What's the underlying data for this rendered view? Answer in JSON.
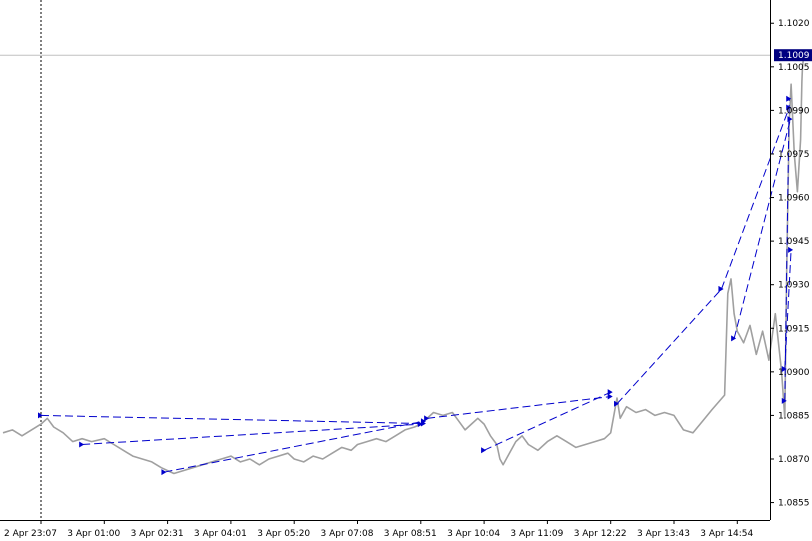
{
  "chart_data": {
    "type": "line",
    "title": "",
    "xlabel": "",
    "ylabel": "",
    "ylim": [
      1.0849,
      1.1028
    ],
    "grid": false,
    "legend": "none",
    "colors": {
      "price_line": "#a0a0a0",
      "trade_lines": "#0000cc",
      "axis": "#000000",
      "current_price_label_bg": "#000080",
      "current_price_label_text": "#ffffff",
      "current_price_line": "#c0c0c0"
    },
    "current_price": {
      "value": 1.1009,
      "label": "1.1009"
    },
    "y_ticks": [
      {
        "value": 1.102,
        "label": "1.1020"
      },
      {
        "value": 1.1005,
        "label": "1.1005"
      },
      {
        "value": 1.099,
        "label": "1.0990"
      },
      {
        "value": 1.0975,
        "label": "1.0975"
      },
      {
        "value": 1.096,
        "label": "1.0960"
      },
      {
        "value": 1.0945,
        "label": "1.0945"
      },
      {
        "value": 1.093,
        "label": "1.0930"
      },
      {
        "value": 1.0915,
        "label": "1.0915"
      },
      {
        "value": 1.09,
        "label": "1.0900"
      },
      {
        "value": 1.0885,
        "label": "1.0885"
      },
      {
        "value": 1.087,
        "label": "1.0870"
      },
      {
        "value": 1.0855,
        "label": "1.0855"
      }
    ],
    "x_ticks": [
      "2 Apr 23:07",
      "3 Apr 01:00",
      "3 Apr 02:31",
      "3 Apr 04:01",
      "3 Apr 05:20",
      "3 Apr 07:08",
      "3 Apr 08:51",
      "3 Apr 10:04",
      "3 Apr 11:09",
      "3 Apr 12:22",
      "3 Apr 13:43",
      "3 Apr 14:54"
    ],
    "x_range": [
      -0.6,
      12.05
    ],
    "period_separator_at": 0,
    "series": [
      {
        "values": [
          [
            -0.6,
            1.0879
          ],
          [
            -0.45,
            1.088
          ],
          [
            -0.3,
            1.0878
          ],
          [
            -0.15,
            1.088
          ],
          [
            0.0,
            1.0882
          ],
          [
            0.1,
            1.0884
          ],
          [
            0.2,
            1.0881
          ],
          [
            0.35,
            1.0879
          ],
          [
            0.5,
            1.0876
          ],
          [
            0.65,
            1.0877
          ],
          [
            0.8,
            1.0876
          ],
          [
            1.0,
            1.0877
          ],
          [
            1.15,
            1.0875
          ],
          [
            1.3,
            1.0873
          ],
          [
            1.45,
            1.0871
          ],
          [
            1.6,
            1.087
          ],
          [
            1.75,
            1.0869
          ],
          [
            1.9,
            1.0867
          ],
          [
            2.0,
            1.0866
          ],
          [
            2.1,
            1.0865
          ],
          [
            2.25,
            1.0866
          ],
          [
            2.4,
            1.0867
          ],
          [
            2.55,
            1.0868
          ],
          [
            2.7,
            1.0869
          ],
          [
            2.85,
            1.087
          ],
          [
            3.0,
            1.0871
          ],
          [
            3.15,
            1.0869
          ],
          [
            3.3,
            1.087
          ],
          [
            3.45,
            1.0868
          ],
          [
            3.6,
            1.087
          ],
          [
            3.75,
            1.0871
          ],
          [
            3.9,
            1.0872
          ],
          [
            4.0,
            1.087
          ],
          [
            4.15,
            1.0869
          ],
          [
            4.3,
            1.0871
          ],
          [
            4.45,
            1.087
          ],
          [
            4.6,
            1.0872
          ],
          [
            4.75,
            1.0874
          ],
          [
            4.9,
            1.0873
          ],
          [
            5.0,
            1.0875
          ],
          [
            5.15,
            1.0876
          ],
          [
            5.3,
            1.0877
          ],
          [
            5.45,
            1.0876
          ],
          [
            5.6,
            1.0878
          ],
          [
            5.75,
            1.088
          ],
          [
            5.9,
            1.0881
          ],
          [
            6.0,
            1.0882
          ],
          [
            6.1,
            1.0884
          ],
          [
            6.2,
            1.0886
          ],
          [
            6.35,
            1.0885
          ],
          [
            6.5,
            1.0886
          ],
          [
            6.6,
            1.0883
          ],
          [
            6.7,
            1.088
          ],
          [
            6.8,
            1.0882
          ],
          [
            6.9,
            1.0884
          ],
          [
            7.0,
            1.0882
          ],
          [
            7.1,
            1.0878
          ],
          [
            7.2,
            1.0875
          ],
          [
            7.25,
            1.087
          ],
          [
            7.3,
            1.0868
          ],
          [
            7.4,
            1.0872
          ],
          [
            7.5,
            1.0876
          ],
          [
            7.6,
            1.0878
          ],
          [
            7.7,
            1.0875
          ],
          [
            7.85,
            1.0873
          ],
          [
            8.0,
            1.0876
          ],
          [
            8.15,
            1.0878
          ],
          [
            8.3,
            1.0876
          ],
          [
            8.45,
            1.0874
          ],
          [
            8.6,
            1.0875
          ],
          [
            8.75,
            1.0876
          ],
          [
            8.9,
            1.0877
          ],
          [
            9.0,
            1.0879
          ],
          [
            9.1,
            1.0891
          ],
          [
            9.15,
            1.0884
          ],
          [
            9.25,
            1.0888
          ],
          [
            9.4,
            1.0886
          ],
          [
            9.55,
            1.0887
          ],
          [
            9.7,
            1.0885
          ],
          [
            9.85,
            1.0886
          ],
          [
            10.0,
            1.0885
          ],
          [
            10.15,
            1.088
          ],
          [
            10.3,
            1.0879
          ],
          [
            10.45,
            1.0883
          ],
          [
            10.6,
            1.0887
          ],
          [
            10.8,
            1.0892
          ],
          [
            10.85,
            1.0927
          ],
          [
            10.9,
            1.0932
          ],
          [
            10.95,
            1.092
          ],
          [
            11.0,
            1.0914
          ],
          [
            11.1,
            1.091
          ],
          [
            11.2,
            1.0916
          ],
          [
            11.3,
            1.0906
          ],
          [
            11.4,
            1.0914
          ],
          [
            11.5,
            1.0904
          ],
          [
            11.6,
            1.092
          ],
          [
            11.7,
            1.09
          ],
          [
            11.75,
            1.0884
          ],
          [
            11.78,
            1.0935
          ],
          [
            11.82,
            1.0986
          ],
          [
            11.85,
            1.0999
          ],
          [
            11.9,
            1.0975
          ],
          [
            11.95,
            1.0962
          ],
          [
            12.0,
            1.098
          ],
          [
            12.02,
            1.1
          ],
          [
            12.03,
            1.1005
          ],
          [
            12.05,
            1.1009
          ]
        ]
      }
    ],
    "trades": [
      {
        "from": [
          0.0,
          1.0885
        ],
        "to": [
          6.05,
          1.08822
        ]
      },
      {
        "from": [
          0.65,
          1.0875
        ],
        "to": [
          6.0,
          1.0882
        ]
      },
      {
        "from": [
          1.95,
          1.08655
        ],
        "to": [
          6.05,
          1.0883
        ]
      },
      {
        "from": [
          6.1,
          1.0884
        ],
        "to": [
          9.0,
          1.08915
        ]
      },
      {
        "from": [
          7.0,
          1.0873
        ],
        "to": [
          9.0,
          1.0893
        ]
      },
      {
        "from": [
          9.1,
          1.0889
        ],
        "to": [
          10.75,
          1.09285
        ]
      },
      {
        "from": [
          10.75,
          1.09285
        ],
        "to": [
          11.82,
          1.0991
        ]
      },
      {
        "from": [
          10.95,
          1.09115
        ],
        "to": [
          11.84,
          1.0987
        ]
      },
      {
        "from": [
          11.75,
          1.0901
        ],
        "to": [
          11.85,
          1.0942
        ]
      },
      {
        "from": [
          11.75,
          1.089
        ],
        "to": [
          11.82,
          1.0994
        ]
      }
    ]
  }
}
